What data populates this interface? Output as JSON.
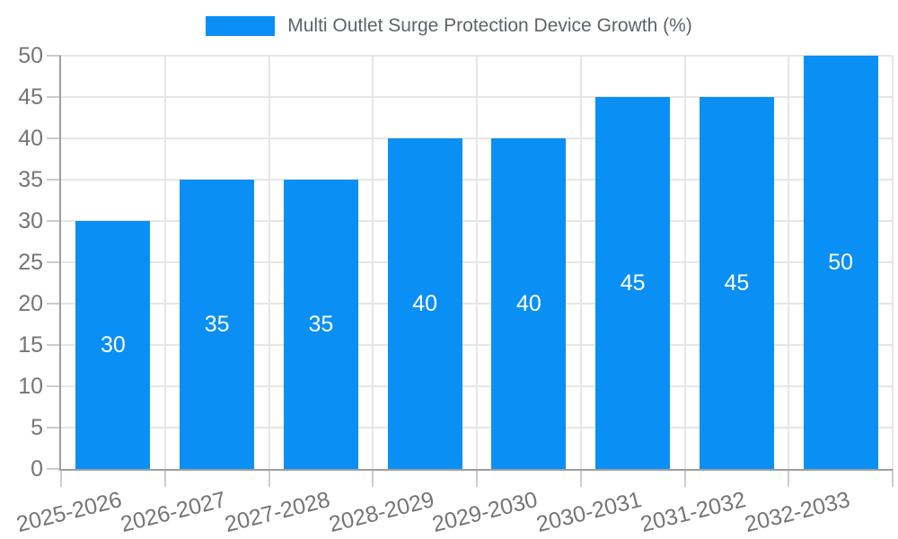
{
  "chart_data": {
    "type": "bar",
    "title": "Multi Outlet Surge Protection Device Growth (%)",
    "legend_position": "top",
    "categories": [
      "2025-2026",
      "2026-2027",
      "2027-2028",
      "2028-2029",
      "2029-2030",
      "2030-2031",
      "2031-2032",
      "2032-2033"
    ],
    "series": [
      {
        "name": "Multi Outlet Surge Protection Device Growth (%)",
        "values": [
          30,
          35,
          35,
          40,
          40,
          45,
          45,
          50
        ]
      }
    ],
    "bar_value_labels": [
      "30",
      "35",
      "35",
      "40",
      "40",
      "45",
      "45",
      "50"
    ],
    "xlabel": "",
    "ylabel": "",
    "ylim": [
      0,
      50
    ],
    "ytick_step": 5,
    "yticks": [
      0,
      5,
      10,
      15,
      20,
      25,
      30,
      35,
      40,
      45,
      50
    ],
    "grid": true,
    "colors": {
      "bar": "#0a8ff5",
      "bar_label_text": "#ffffff",
      "tick_text": "#757575",
      "legend_text": "#5f6368",
      "gridline": "#e6e6e6",
      "axis_line": "#9e9e9e",
      "tick_mark": "#cccccc"
    }
  }
}
